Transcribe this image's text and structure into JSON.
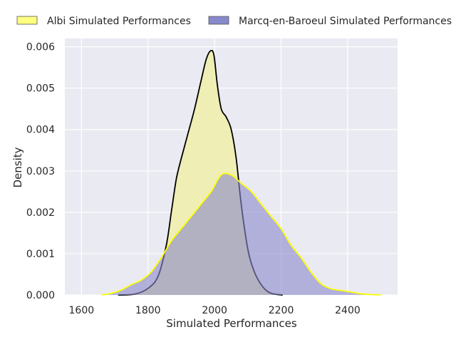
{
  "chart_data": {
    "type": "area",
    "title": "",
    "xlabel": "Simulated Performances",
    "ylabel": "Density",
    "xlim": [
      1550,
      2550
    ],
    "ylim": [
      0,
      0.0062
    ],
    "xticks": [
      1600,
      1800,
      2000,
      2200,
      2400
    ],
    "yticks": [
      0.0,
      0.001,
      0.002,
      0.003,
      0.004,
      0.005,
      0.006
    ],
    "xtick_labels": [
      "1600",
      "1800",
      "2000",
      "2200",
      "2400"
    ],
    "ytick_labels": [
      "0.000",
      "0.001",
      "0.002",
      "0.003",
      "0.004",
      "0.005",
      "0.006"
    ],
    "grid": true,
    "legend_position": "top",
    "series": [
      {
        "name": "Albi Simulated Performances",
        "fill": "#eeeeaa",
        "stroke": "#000000",
        "x": [
          1710,
          1760,
          1800,
          1830,
          1855,
          1870,
          1885,
          1900,
          1920,
          1940,
          1960,
          1975,
          1988,
          1998,
          2008,
          2020,
          2035,
          2050,
          2065,
          2080,
          2100,
          2120,
          2140,
          2160,
          2180,
          2205
        ],
        "y": [
          0.0,
          2e-05,
          0.00016,
          0.00045,
          0.0012,
          0.002,
          0.0028,
          0.0033,
          0.0039,
          0.0045,
          0.0052,
          0.0057,
          0.0059,
          0.0058,
          0.0051,
          0.0045,
          0.0043,
          0.004,
          0.0033,
          0.0022,
          0.0011,
          0.00055,
          0.00025,
          8e-05,
          2e-05,
          0.0
        ]
      },
      {
        "name": "Marcq-en-Baroeul Simulated Performances",
        "fill": "#8888cc",
        "stroke": "#ffff00",
        "x": [
          1660,
          1690,
          1720,
          1750,
          1780,
          1810,
          1840,
          1870,
          1900,
          1930,
          1960,
          1990,
          2020,
          2050,
          2080,
          2110,
          2140,
          2170,
          2200,
          2230,
          2260,
          2290,
          2320,
          2350,
          2380,
          2410,
          2440,
          2470,
          2500
        ],
        "y": [
          0.0,
          4e-05,
          0.00012,
          0.00025,
          0.00036,
          0.00056,
          0.0009,
          0.0013,
          0.0016,
          0.0019,
          0.0022,
          0.0025,
          0.0029,
          0.0029,
          0.0027,
          0.0025,
          0.0022,
          0.0019,
          0.0016,
          0.0012,
          0.0009,
          0.00055,
          0.00027,
          0.00015,
          0.00011,
          7e-05,
          3e-05,
          1e-05,
          0.0
        ]
      }
    ]
  }
}
